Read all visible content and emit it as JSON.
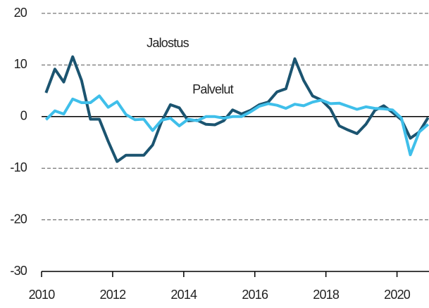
{
  "chart_data": {
    "type": "line",
    "x": [
      2010.125,
      2010.375,
      2010.625,
      2010.875,
      2011.125,
      2011.375,
      2011.625,
      2011.875,
      2012.125,
      2012.375,
      2012.625,
      2012.875,
      2013.125,
      2013.375,
      2013.625,
      2013.875,
      2014.125,
      2014.375,
      2014.625,
      2014.875,
      2015.125,
      2015.375,
      2015.625,
      2015.875,
      2016.125,
      2016.375,
      2016.625,
      2016.875,
      2017.125,
      2017.375,
      2017.625,
      2017.875,
      2018.125,
      2018.375,
      2018.625,
      2018.875,
      2019.125,
      2019.375,
      2019.625,
      2019.875,
      2020.125,
      2020.375,
      2020.625,
      2020.875
    ],
    "series": [
      {
        "name": "Jalostus",
        "color": "#1b5470",
        "values": [
          4.6,
          9.2,
          6.7,
          11.6,
          7,
          -0.5,
          -0.5,
          -4.8,
          -8.7,
          -7.5,
          -7.5,
          -7.5,
          -5.5,
          -1,
          2.3,
          1.7,
          -0.8,
          -0.7,
          -1.5,
          -1.6,
          -0.8,
          1.3,
          0.5,
          1.2,
          2.3,
          2.8,
          4.8,
          5.4,
          11.2,
          7,
          4,
          3.2,
          1.5,
          -1.8,
          -2.6,
          -3.3,
          -1.5,
          1.2,
          2.1,
          0.8,
          -0.6,
          -4.2,
          -3,
          -0.2
        ]
      },
      {
        "name": "Palvelut",
        "color": "#3fbfea",
        "values": [
          -0.6,
          1.1,
          0.5,
          3.4,
          2.7,
          2.7,
          4,
          1.8,
          2.9,
          0.4,
          -0.6,
          -0.5,
          -2.7,
          -0.7,
          -0.3,
          -1.8,
          -0.5,
          -0.8,
          0,
          0,
          -0.3,
          0,
          0,
          0.9,
          2,
          2.5,
          2.2,
          1.6,
          2.4,
          2.1,
          2.8,
          3.2,
          2.5,
          2.6,
          2,
          1.4,
          1.9,
          1.6,
          1.5,
          1.3,
          -0.3,
          -7.4,
          -3,
          -1.5
        ]
      }
    ],
    "xlim": [
      2010,
      2020.9
    ],
    "xticks": [
      2010,
      2012,
      2014,
      2016,
      2018,
      2020
    ],
    "ylim": [
      -30,
      20
    ],
    "yticks": [
      -30,
      -20,
      -10,
      0,
      10,
      20
    ],
    "grid": true
  }
}
